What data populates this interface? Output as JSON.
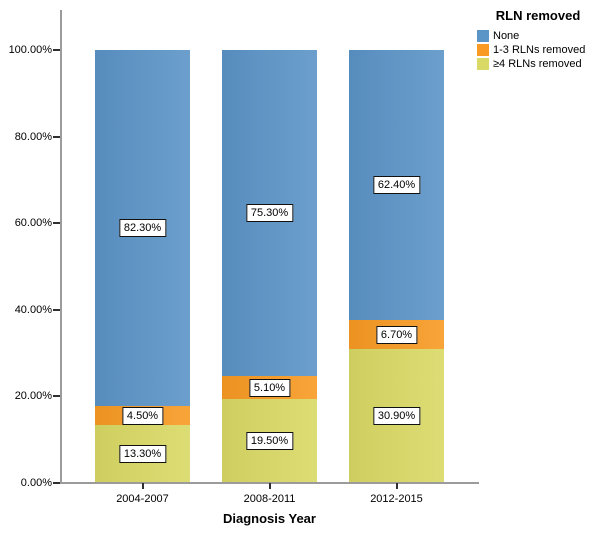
{
  "figure": {
    "background": "#ffffff",
    "axis_line_color": "#9b9b9b",
    "tick_color": "#2f2f2f"
  },
  "legend": {
    "title": "RLN removed",
    "items": [
      {
        "label": "None",
        "color": "#5B94C7"
      },
      {
        "label": "1-3 RLNs removed",
        "color": "#F89A23"
      },
      {
        "label": "≥4 RLNs removed",
        "color": "#D9D965"
      }
    ]
  },
  "chart_data": {
    "type": "bar",
    "stacked": true,
    "title": "",
    "xlabel": "Diagnosis Year",
    "ylabel": "",
    "categories": [
      "2004-2007",
      "2008-2011",
      "2012-2015"
    ],
    "series": [
      {
        "name": "None",
        "color": "#5B94C7",
        "values": [
          82.3,
          75.3,
          62.4
        ]
      },
      {
        "name": "1-3 RLNs removed",
        "color": "#F89A23",
        "values": [
          4.5,
          5.1,
          6.7
        ]
      },
      {
        "name": "≥4 RLNs removed",
        "color": "#D9D965",
        "values": [
          13.3,
          19.5,
          30.9
        ]
      }
    ],
    "value_labels": [
      [
        "82.30%",
        "75.30%",
        "62.40%"
      ],
      [
        "4.50%",
        "5.10%",
        "6.70%"
      ],
      [
        "13.30%",
        "19.50%",
        "30.90%"
      ]
    ],
    "y_ticks": [
      "0.00%",
      "20.00%",
      "40.00%",
      "60.00%",
      "80.00%",
      "100.00%"
    ],
    "y_tick_values": [
      0,
      20,
      40,
      60,
      80,
      100
    ],
    "ylim": [
      0,
      100
    ],
    "grid": false,
    "legend_position": "top-right"
  }
}
